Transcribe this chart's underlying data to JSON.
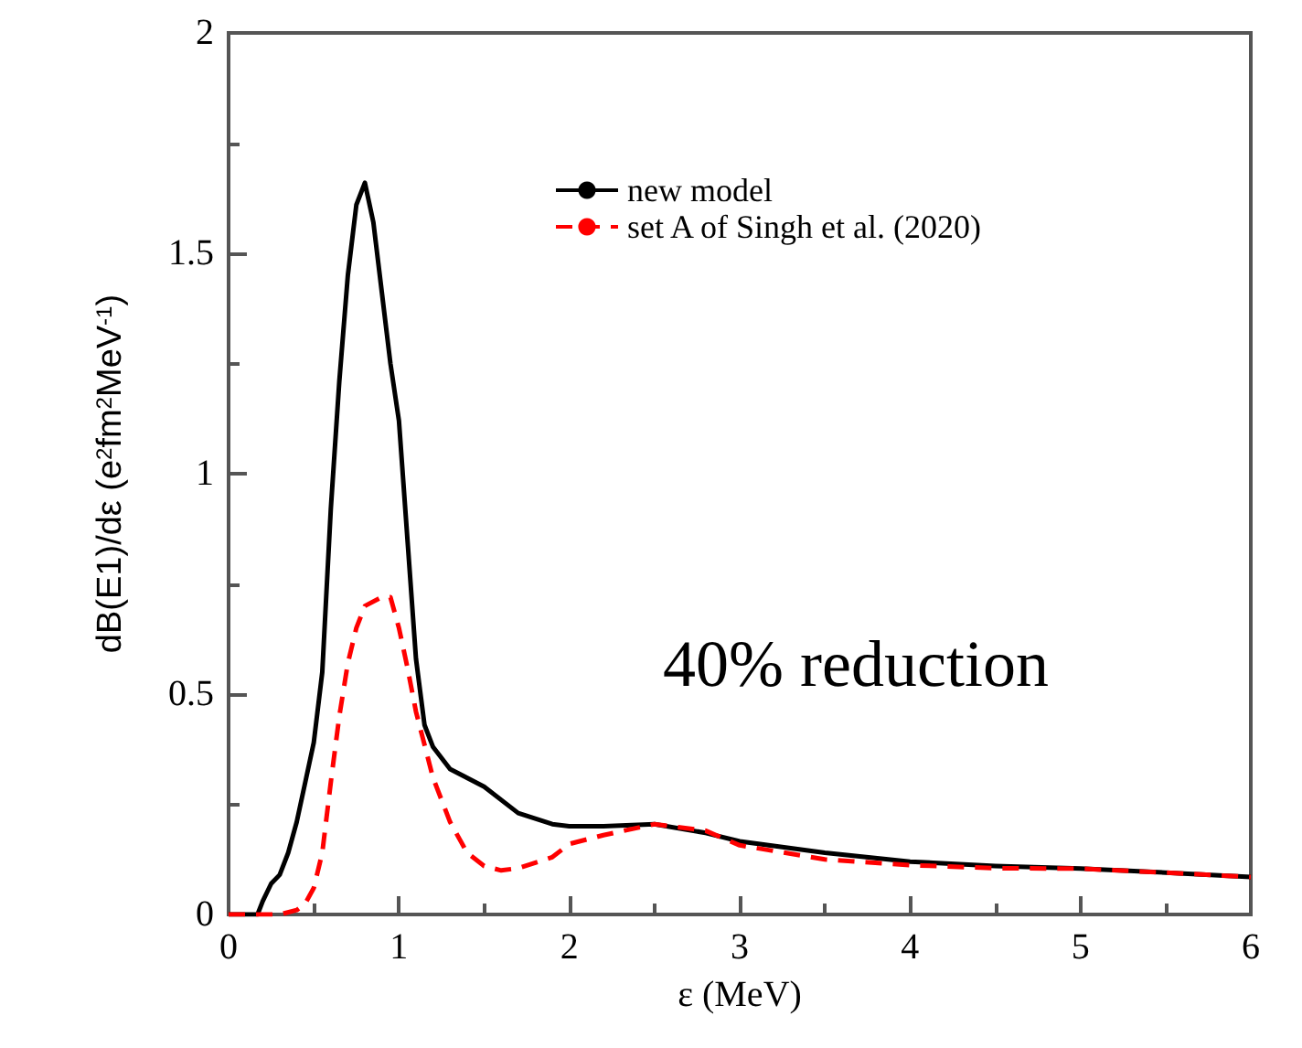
{
  "chart_data": {
    "type": "line",
    "xlabel": "ε (MeV)",
    "ylabel": "dB(E1)/dε (e$^{2}$fm$^{2}$MeV$^{-1}$)",
    "xlim": [
      0,
      6
    ],
    "xticks": [
      0,
      1,
      2,
      3,
      4,
      5,
      6
    ],
    "ylim": [
      0,
      2
    ],
    "yticks": [
      0,
      0.5,
      1,
      1.5,
      2
    ],
    "grid": false,
    "legend": "top right",
    "marker": "none",
    "annotations": [
      "40% reduction"
    ],
    "series": [
      {
        "name": "new model",
        "color": "#000000",
        "line_style": "solid",
        "x": [
          0,
          0.17,
          0.2,
          0.25,
          0.3,
          0.35,
          0.4,
          0.45,
          0.5,
          0.55,
          0.6,
          0.65,
          0.7,
          0.75,
          0.8,
          0.85,
          0.9,
          0.95,
          1.0,
          1.05,
          1.1,
          1.15,
          1.2,
          1.3,
          1.5,
          1.7,
          1.9,
          2.0,
          2.2,
          2.5,
          2.8,
          3.0,
          3.5,
          4.0,
          4.5,
          5.0,
          5.5,
          6.0
        ],
        "values": [
          0,
          0,
          0.03,
          0.07,
          0.09,
          0.14,
          0.21,
          0.3,
          0.39,
          0.55,
          0.92,
          1.21,
          1.45,
          1.61,
          1.66,
          1.57,
          1.41,
          1.25,
          1.12,
          0.85,
          0.58,
          0.43,
          0.38,
          0.33,
          0.29,
          0.23,
          0.205,
          0.2,
          0.2,
          0.205,
          0.185,
          0.166,
          0.14,
          0.12,
          0.11,
          0.104,
          0.095,
          0.085
        ]
      },
      {
        "name": "set A of Singh et al. (2020)",
        "color": "#ff0000",
        "line_style": "dashed",
        "x": [
          0,
          0.3,
          0.4,
          0.45,
          0.5,
          0.55,
          0.6,
          0.65,
          0.7,
          0.75,
          0.8,
          0.9,
          0.95,
          1.0,
          1.05,
          1.1,
          1.2,
          1.3,
          1.4,
          1.5,
          1.6,
          1.7,
          1.9,
          2.0,
          2.2,
          2.5,
          2.8,
          3.0,
          3.5,
          4.0,
          4.5,
          5.0,
          5.5,
          6.0
        ],
        "values": [
          0,
          0,
          0.01,
          0.025,
          0.06,
          0.14,
          0.3,
          0.45,
          0.57,
          0.65,
          0.7,
          0.72,
          0.72,
          0.65,
          0.56,
          0.46,
          0.31,
          0.21,
          0.14,
          0.11,
          0.1,
          0.105,
          0.13,
          0.16,
          0.18,
          0.205,
          0.19,
          0.157,
          0.125,
          0.112,
          0.105,
          0.104,
          0.095,
          0.085
        ]
      }
    ]
  }
}
